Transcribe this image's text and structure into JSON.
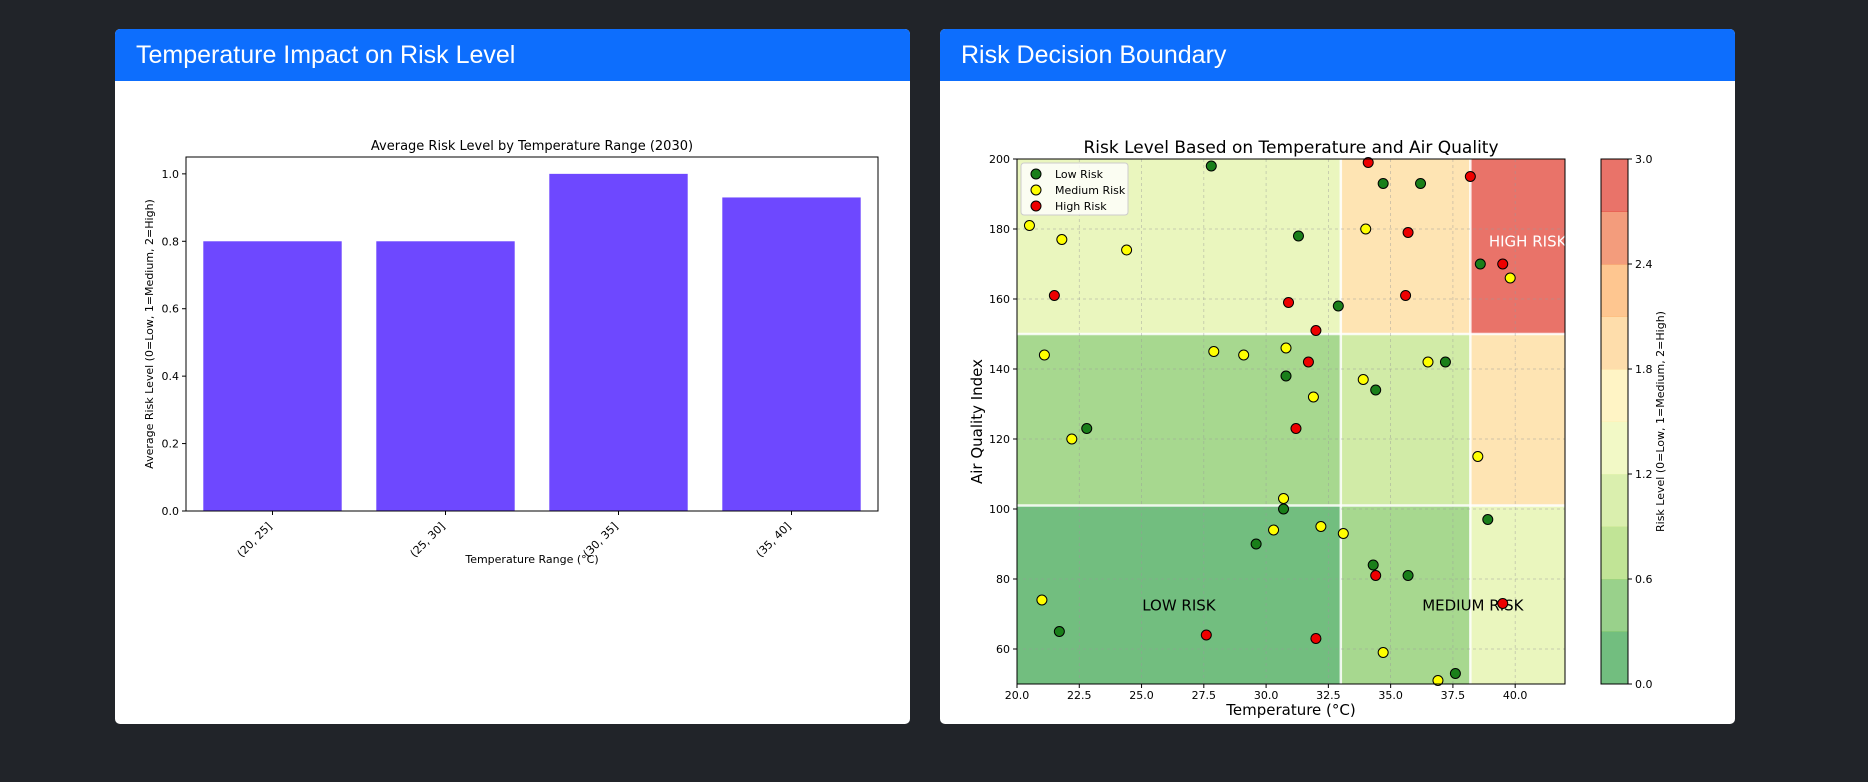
{
  "panels": {
    "left": {
      "header": "Temperature Impact on Risk Level"
    },
    "right": {
      "header": "Risk Decision Boundary"
    }
  },
  "colors": {
    "page_bg": "#212429",
    "header_bg": "#0d6efd",
    "bar": "#6e48ff",
    "low": "#1a7f1a",
    "medium": "#ffff00",
    "high": "#ee0000"
  },
  "chart_data": [
    {
      "type": "bar",
      "title": "Average Risk Level by Temperature Range (2030)",
      "xlabel": "Temperature Range (°C)",
      "ylabel": "Average Risk Level (0=Low, 1=Medium, 2=High)",
      "categories": [
        "(20, 25]",
        "(25, 30]",
        "(30, 35]",
        "(35, 40]"
      ],
      "values": [
        0.8,
        0.8,
        1.0,
        0.93
      ],
      "ylim": [
        0,
        1.05
      ],
      "yticks": [
        0.0,
        0.2,
        0.4,
        0.6,
        0.8,
        1.0
      ],
      "ytick_labels": [
        "0.0",
        "0.2",
        "0.4",
        "0.6",
        "0.8",
        "1.0"
      ],
      "grid": false
    },
    {
      "type": "scatter",
      "title": "Risk Level Based on Temperature and Air Quality",
      "xlabel": "Temperature (°C)",
      "ylabel": "Air Quality Index",
      "xlim": [
        20,
        42
      ],
      "ylim": [
        50,
        200
      ],
      "xticks": [
        20.0,
        22.5,
        25.0,
        27.5,
        30.0,
        32.5,
        35.0,
        37.5,
        40.0
      ],
      "xtick_labels": [
        "20.0",
        "22.5",
        "25.0",
        "27.5",
        "30.0",
        "32.5",
        "35.0",
        "37.5",
        "40.0"
      ],
      "yticks": [
        60,
        80,
        100,
        120,
        140,
        160,
        180,
        200
      ],
      "ytick_labels": [
        "60",
        "80",
        "100",
        "120",
        "140",
        "160",
        "180",
        "200"
      ],
      "grid": true,
      "legend": {
        "placement": "top-left",
        "entries": [
          "Low Risk",
          "Medium Risk",
          "High Risk"
        ]
      },
      "region_labels": [
        {
          "text": "LOW RISK",
          "x": 26.5,
          "y": 71,
          "tone": "dark"
        },
        {
          "text": "MEDIUM RISK",
          "x": 38.3,
          "y": 71,
          "tone": "dark"
        },
        {
          "text": "HIGH RISK",
          "x": 40.5,
          "y": 175,
          "tone": "light"
        }
      ],
      "regions": [
        {
          "x0": 20,
          "x1": 33,
          "y0": 50,
          "y1": 101,
          "level": 0.15
        },
        {
          "x0": 33,
          "x1": 38.2,
          "y0": 50,
          "y1": 101,
          "level": 0.55
        },
        {
          "x0": 38.2,
          "x1": 42,
          "y0": 50,
          "y1": 101,
          "level": 1.25
        },
        {
          "x0": 20,
          "x1": 33,
          "y0": 101,
          "y1": 150,
          "level": 0.55
        },
        {
          "x0": 33,
          "x1": 38.2,
          "y0": 101,
          "y1": 150,
          "level": 0.95
        },
        {
          "x0": 38.2,
          "x1": 42,
          "y0": 101,
          "y1": 150,
          "level": 1.85
        },
        {
          "x0": 20,
          "x1": 33,
          "y0": 150,
          "y1": 200,
          "level": 1.25
        },
        {
          "x0": 33,
          "x1": 38.2,
          "y0": 150,
          "y1": 200,
          "level": 1.85
        },
        {
          "x0": 38.2,
          "x1": 42,
          "y0": 150,
          "y1": 200,
          "level": 2.85
        }
      ],
      "series": [
        {
          "name": "Low Risk",
          "points": [
            [
              27.8,
              198
            ],
            [
              34.7,
              193
            ],
            [
              36.2,
              193
            ],
            [
              31.3,
              178
            ],
            [
              38.6,
              170
            ],
            [
              32.9,
              158
            ],
            [
              37.2,
              142
            ],
            [
              30.8,
              138
            ],
            [
              34.4,
              134
            ],
            [
              22.8,
              123
            ],
            [
              30.7,
              100
            ],
            [
              29.6,
              90
            ],
            [
              34.3,
              84
            ],
            [
              35.7,
              81
            ],
            [
              38.9,
              97
            ],
            [
              21.7,
              65
            ],
            [
              37.6,
              53
            ]
          ]
        },
        {
          "name": "Medium Risk",
          "points": [
            [
              20.5,
              181
            ],
            [
              21.8,
              177
            ],
            [
              24.4,
              174
            ],
            [
              34.0,
              180
            ],
            [
              39.8,
              166
            ],
            [
              21.1,
              144
            ],
            [
              27.9,
              145
            ],
            [
              29.1,
              144
            ],
            [
              30.8,
              146
            ],
            [
              33.9,
              137
            ],
            [
              36.5,
              142
            ],
            [
              31.9,
              132
            ],
            [
              22.2,
              120
            ],
            [
              38.5,
              115
            ],
            [
              30.7,
              103
            ],
            [
              30.3,
              94
            ],
            [
              32.2,
              95
            ],
            [
              33.1,
              93
            ],
            [
              21.0,
              74
            ],
            [
              34.7,
              59
            ],
            [
              36.9,
              51
            ]
          ]
        },
        {
          "name": "High Risk",
          "points": [
            [
              34.1,
              199
            ],
            [
              38.2,
              195
            ],
            [
              35.7,
              179
            ],
            [
              39.5,
              170
            ],
            [
              21.5,
              161
            ],
            [
              30.9,
              159
            ],
            [
              32.0,
              151
            ],
            [
              35.6,
              161
            ],
            [
              31.7,
              142
            ],
            [
              31.2,
              123
            ],
            [
              34.4,
              81
            ],
            [
              39.5,
              73
            ],
            [
              27.6,
              64
            ],
            [
              32.0,
              63
            ]
          ]
        }
      ],
      "colorbar": {
        "label": "Risk Level (0=Low, 1=Medium, 2=High)",
        "range": [
          0,
          3
        ],
        "ticks": [
          0.0,
          0.6,
          1.2,
          1.8,
          2.4,
          3.0
        ],
        "tick_labels": [
          "0.0",
          "0.6",
          "1.2",
          "1.8",
          "2.4",
          "3.0"
        ],
        "levels": 10
      }
    }
  ]
}
